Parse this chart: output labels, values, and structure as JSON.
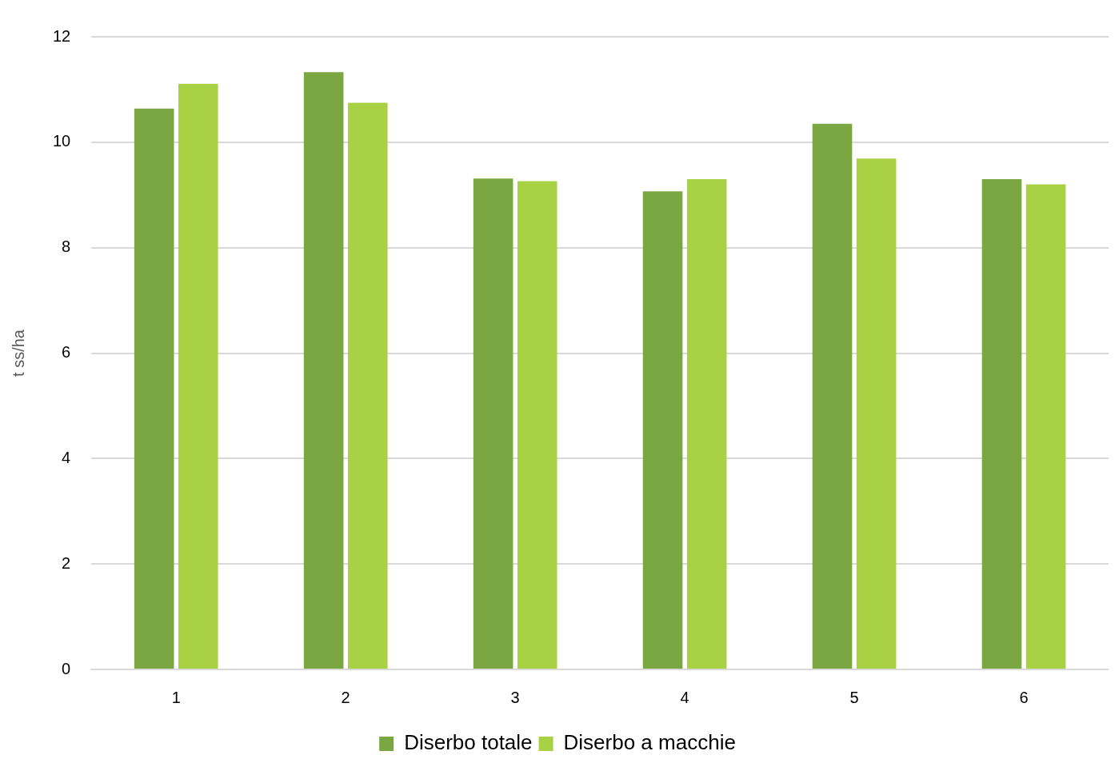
{
  "chart_data": {
    "type": "bar",
    "ylabel": "t ss/ha",
    "categories": [
      "1",
      "2",
      "3",
      "4",
      "5",
      "6"
    ],
    "series": [
      {
        "name": "Diserbo totale",
        "color": "#7aa742",
        "values": [
          10.64,
          11.33,
          9.31,
          9.07,
          10.35,
          9.3
        ]
      },
      {
        "name": "Diserbo a macchie",
        "color": "#a8d144",
        "values": [
          11.11,
          10.75,
          9.26,
          9.3,
          9.69,
          9.2
        ]
      }
    ],
    "ylim": [
      0,
      12
    ],
    "yticks": [
      0,
      2,
      4,
      6,
      8,
      10,
      12
    ],
    "grid": "y",
    "legend": "bottom"
  }
}
